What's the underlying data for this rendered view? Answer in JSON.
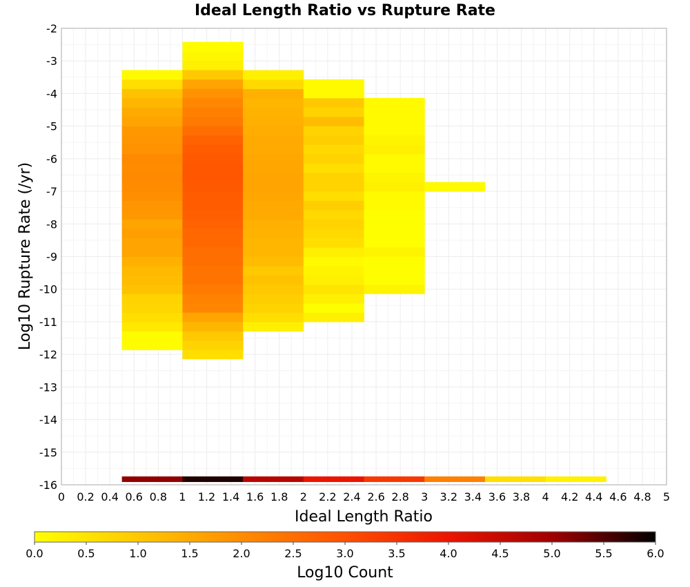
{
  "chart_data": {
    "type": "heatmap",
    "title": "Ideal Length Ratio vs Rupture Rate",
    "xlabel": "Ideal Length Ratio",
    "ylabel": "Log10 Rupture Rate (/yr)",
    "xlim": [
      0,
      5
    ],
    "ylim": [
      -16,
      -2
    ],
    "x_ticks": [
      "0",
      "0.2",
      "0.4",
      "0.6",
      "0.8",
      "1",
      "1.2",
      "1.4",
      "1.6",
      "1.8",
      "2",
      "2.2",
      "2.4",
      "2.6",
      "2.8",
      "3",
      "3.2",
      "3.4",
      "3.6",
      "3.8",
      "4",
      "4.2",
      "4.4",
      "4.6",
      "4.8",
      "5"
    ],
    "y_ticks": [
      "-2",
      "-3",
      "-4",
      "-5",
      "-6",
      "-7",
      "-8",
      "-9",
      "-10",
      "-11",
      "-12",
      "-13",
      "-14",
      "-15",
      "-16"
    ],
    "grid": true,
    "colorbar": {
      "label": "Log10 Count",
      "range": [
        0,
        6
      ],
      "ticks": [
        "0.0",
        "0.5",
        "1.0",
        "1.5",
        "2.0",
        "2.5",
        "3.0",
        "3.5",
        "4.0",
        "4.5",
        "5.0",
        "5.5",
        "6.0"
      ],
      "colors": [
        "#ffff00",
        "#ffc800",
        "#ff8c00",
        "#ff5000",
        "#eb1400",
        "#a00000",
        "#000000"
      ]
    },
    "bin_width_y": 0.286,
    "columns": [
      {
        "x_range": [
          0.5,
          1.0
        ],
        "y_start": -11.86,
        "values": [
          0.05,
          0.05,
          0.4,
          0.6,
          0.75,
          0.8,
          1.1,
          1.2,
          1.25,
          1.4,
          1.6,
          1.6,
          1.7,
          1.6,
          1.8,
          1.85,
          1.95,
          2.0,
          2.05,
          2.0,
          2.05,
          1.9,
          1.85,
          1.8,
          1.6,
          1.5,
          1.3,
          1.1,
          0.6,
          0.1
        ]
      },
      {
        "x_range": [
          1.0,
          1.5
        ],
        "y_start": -12.14,
        "values": [
          0.6,
          0.8,
          1.0,
          1.3,
          1.6,
          2.1,
          2.15,
          2.3,
          2.4,
          2.4,
          2.5,
          2.5,
          2.6,
          2.6,
          2.7,
          2.75,
          2.8,
          2.8,
          2.85,
          2.9,
          2.9,
          2.85,
          2.8,
          2.7,
          2.5,
          2.3,
          2.2,
          2.1,
          1.9,
          1.6,
          1.0,
          0.3,
          0.15,
          0.05
        ]
      },
      {
        "x_range": [
          1.5,
          2.0
        ],
        "y_start": -11.29,
        "values": [
          0.3,
          0.6,
          0.8,
          0.9,
          1.0,
          1.1,
          1.0,
          1.2,
          1.3,
          1.3,
          1.35,
          1.4,
          1.5,
          1.5,
          1.55,
          1.6,
          1.6,
          1.55,
          1.55,
          1.5,
          1.5,
          1.45,
          1.4,
          1.35,
          1.3,
          1.4,
          0.7,
          0.3
        ]
      },
      {
        "x_range": [
          2.0,
          2.5
        ],
        "y_start": -11.0,
        "values": [
          0.3,
          0.01,
          0.3,
          0.5,
          0.3,
          0.2,
          0.1,
          0.3,
          0.6,
          0.7,
          0.8,
          0.7,
          0.9,
          0.6,
          0.8,
          0.8,
          0.6,
          0.8,
          0.7,
          0.9,
          0.8,
          1.2,
          0.8,
          1.0,
          0.1,
          0.1
        ]
      },
      {
        "x_range": [
          2.5,
          3.0
        ],
        "y_start": -10.14,
        "values": [
          0.2,
          0.01,
          0.01,
          0.01,
          0.2,
          0.01,
          0.01,
          0.01,
          0.01,
          0.1,
          0.1,
          0.3,
          0.2,
          0.1,
          0.1,
          0.3,
          0.2,
          0.1,
          0.1,
          0.1,
          0.1
        ]
      },
      {
        "x_range": [
          3.0,
          3.5
        ],
        "y_start": -7.0,
        "values": [
          0.1
        ]
      }
    ],
    "bottom_bar": {
      "y": -15.9,
      "segments": [
        {
          "x_range": [
            0.5,
            1.0
          ],
          "value": 5.1
        },
        {
          "x_range": [
            1.0,
            1.5
          ],
          "value": 5.8
        },
        {
          "x_range": [
            1.5,
            2.0
          ],
          "value": 4.7
        },
        {
          "x_range": [
            2.0,
            2.5
          ],
          "value": 4.0
        },
        {
          "x_range": [
            2.5,
            3.0
          ],
          "value": 3.4
        },
        {
          "x_range": [
            3.0,
            3.5
          ],
          "value": 2.2
        },
        {
          "x_range": [
            3.5,
            4.0
          ],
          "value": 0.6
        },
        {
          "x_range": [
            4.0,
            4.5
          ],
          "value": 0.25
        }
      ]
    }
  }
}
